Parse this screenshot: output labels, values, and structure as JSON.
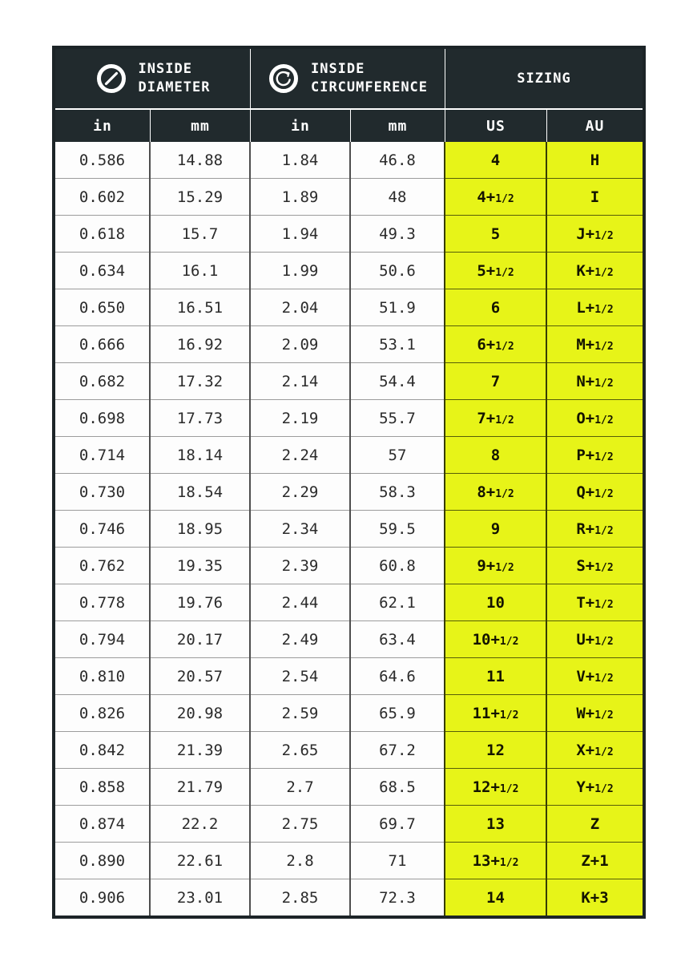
{
  "table": {
    "header_groups": [
      {
        "icon": "diameter-icon",
        "lines": [
          "INSIDE",
          "DIAMETER"
        ]
      },
      {
        "icon": "circumference-icon",
        "lines": [
          "INSIDE",
          "CIRCUMFERENCE"
        ]
      },
      {
        "lines": [
          "SIZING"
        ]
      }
    ],
    "columns": [
      "in",
      "mm",
      "in",
      "mm",
      "US",
      "AU"
    ]
  },
  "colors": {
    "header_bg": "#212a2d",
    "highlight_yellow": "#e7f418",
    "cell_bg": "#fdfdfd",
    "outer_border": "#1c2427",
    "header_text": "#ffffff",
    "cell_text": "#2b2b2b"
  },
  "chart_data": {
    "type": "table",
    "column_groups": [
      "INSIDE DIAMETER",
      "INSIDE CIRCUMFERENCE",
      "SIZING"
    ],
    "columns": [
      "in",
      "mm",
      "in",
      "mm",
      "US",
      "AU"
    ],
    "rows": [
      [
        "0.586",
        "14.88",
        "1.84",
        "46.8",
        "4",
        "H"
      ],
      [
        "0.602",
        "15.29",
        "1.89",
        "48",
        "4+1/2",
        "I"
      ],
      [
        "0.618",
        "15.7",
        "1.94",
        "49.3",
        "5",
        "J+1/2"
      ],
      [
        "0.634",
        "16.1",
        "1.99",
        "50.6",
        "5+1/2",
        "K+1/2"
      ],
      [
        "0.650",
        "16.51",
        "2.04",
        "51.9",
        "6",
        "L+1/2"
      ],
      [
        "0.666",
        "16.92",
        "2.09",
        "53.1",
        "6+1/2",
        "M+1/2"
      ],
      [
        "0.682",
        "17.32",
        "2.14",
        "54.4",
        "7",
        "N+1/2"
      ],
      [
        "0.698",
        "17.73",
        "2.19",
        "55.7",
        "7+1/2",
        "O+1/2"
      ],
      [
        "0.714",
        "18.14",
        "2.24",
        "57",
        "8",
        "P+1/2"
      ],
      [
        "0.730",
        "18.54",
        "2.29",
        "58.3",
        "8+1/2",
        "Q+1/2"
      ],
      [
        "0.746",
        "18.95",
        "2.34",
        "59.5",
        "9",
        "R+1/2"
      ],
      [
        "0.762",
        "19.35",
        "2.39",
        "60.8",
        "9+1/2",
        "S+1/2"
      ],
      [
        "0.778",
        "19.76",
        "2.44",
        "62.1",
        "10",
        "T+1/2"
      ],
      [
        "0.794",
        "20.17",
        "2.49",
        "63.4",
        "10+1/2",
        "U+1/2"
      ],
      [
        "0.810",
        "20.57",
        "2.54",
        "64.6",
        "11",
        "V+1/2"
      ],
      [
        "0.826",
        "20.98",
        "2.59",
        "65.9",
        "11+1/2",
        "W+1/2"
      ],
      [
        "0.842",
        "21.39",
        "2.65",
        "67.2",
        "12",
        "X+1/2"
      ],
      [
        "0.858",
        "21.79",
        "2.7",
        "68.5",
        "12+1/2",
        "Y+1/2"
      ],
      [
        "0.874",
        "22.2",
        "2.75",
        "69.7",
        "13",
        "Z"
      ],
      [
        "0.890",
        "22.61",
        "2.8",
        "71",
        "13+1/2",
        "Z+1"
      ],
      [
        "0.906",
        "23.01",
        "2.85",
        "72.3",
        "14",
        "K+3"
      ]
    ]
  }
}
